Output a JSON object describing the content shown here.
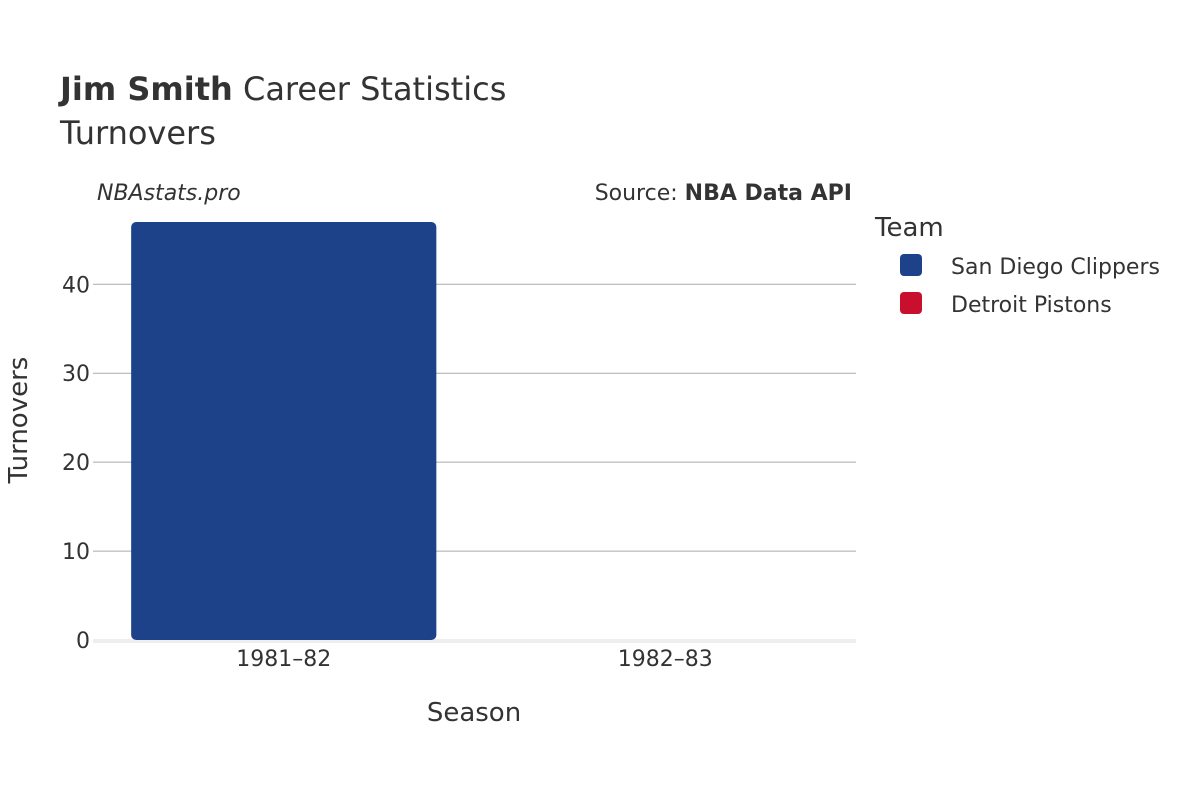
{
  "title": {
    "name": "Jim Smith",
    "rest": " Career Statistics"
  },
  "subtitle": "Turnovers",
  "watermark": "NBAstats.pro",
  "source": {
    "prefix": "Source: ",
    "name": "NBA Data API"
  },
  "chart_data": {
    "type": "bar",
    "categories": [
      "1981–82",
      "1982–83"
    ],
    "series": [
      {
        "name": "San Diego Clippers",
        "color": "#1d428a",
        "values": [
          47,
          0
        ]
      },
      {
        "name": "Detroit Pistons",
        "color": "#c8102e",
        "values": [
          0,
          0
        ]
      }
    ],
    "xlabel": "Season",
    "ylabel": "Turnovers",
    "ylim": [
      0,
      47
    ],
    "yticks": [
      0,
      10,
      20,
      30,
      40
    ],
    "grid": true,
    "legend": {
      "title": "Team",
      "position": "right"
    }
  }
}
